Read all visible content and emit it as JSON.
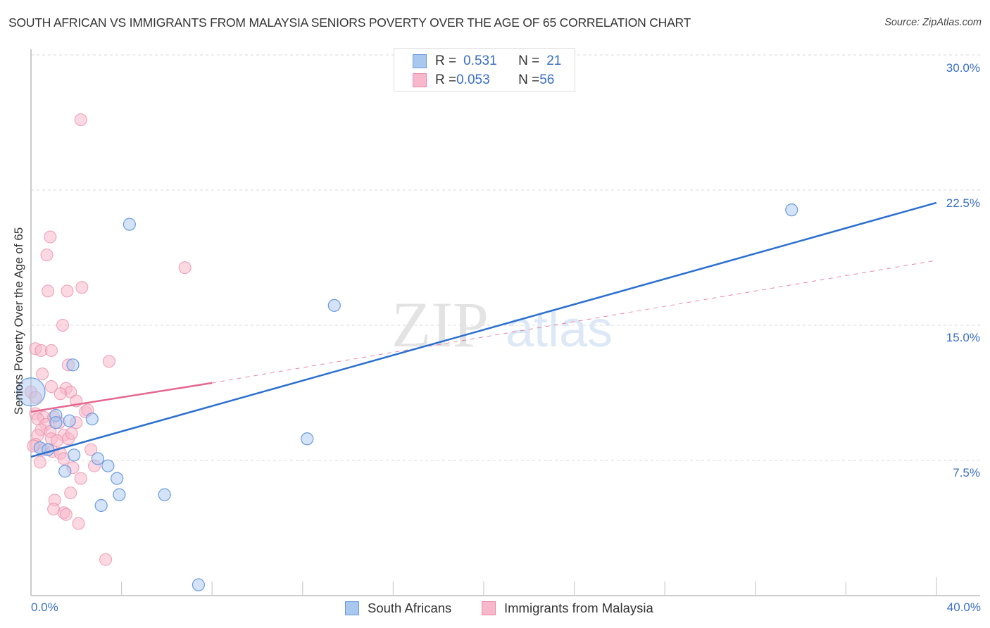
{
  "header": {
    "title": "SOUTH AFRICAN VS IMMIGRANTS FROM MALAYSIA SENIORS POVERTY OVER THE AGE OF 65 CORRELATION CHART",
    "source": "Source: ZipAtlas.com"
  },
  "watermark": {
    "zip": "ZIP",
    "atlas": "atlas"
  },
  "legend_top": {
    "rows": [
      {
        "r_label": "R = ",
        "r_value": "0.531",
        "n_label": "N = ",
        "n_value": "21",
        "color": "#a9c8f0"
      },
      {
        "r_label": "R = ",
        "r_value": "0.053",
        "n_label": "N = ",
        "n_value": "56",
        "color": "#f7b8cb"
      }
    ]
  },
  "axes": {
    "ylabel": "Seniors Poverty Over the Age of 65",
    "y_ticks": [
      "30.0%",
      "22.5%",
      "15.0%",
      "7.5%"
    ],
    "x_min_label": "0.0%",
    "x_max_label": "40.0%"
  },
  "legend_bottom": {
    "items": [
      {
        "label": "South Africans",
        "color": "#a9c8f0"
      },
      {
        "label": "Immigrants from Malaysia",
        "color": "#f7b8cb"
      }
    ]
  },
  "colors": {
    "blue_fill": "#a9c8f0",
    "blue_stroke": "#6b9be0",
    "blue_line": "#2a6fd0",
    "pink_fill": "#f7b8cb",
    "pink_stroke": "#e98aa8",
    "pink_line": "#e4678f",
    "tick_label": "#3a6fc4",
    "grid": "#d8d8d8"
  },
  "chart_data": {
    "type": "scatter",
    "title": "SOUTH AFRICAN VS IMMIGRANTS FROM MALAYSIA SENIORS POVERTY OVER THE AGE OF 65 CORRELATION CHART",
    "xlabel": "",
    "ylabel": "Seniors Poverty Over the Age of 65",
    "xlim": [
      0,
      40
    ],
    "ylim": [
      0,
      30
    ],
    "x_tick_labels": [
      "0.0%",
      "40.0%"
    ],
    "y_tick_labels": [
      "7.5%",
      "15.0%",
      "22.5%",
      "30.0%"
    ],
    "grid": true,
    "legend_position": "top-center and bottom",
    "series": [
      {
        "name": "South Africans",
        "R": 0.531,
        "N": 21,
        "trend": {
          "x": [
            0,
            40
          ],
          "y": [
            7.7,
            21.8
          ]
        },
        "points": [
          [
            0.0,
            11.3,
            3
          ],
          [
            0.4,
            8.2,
            1
          ],
          [
            0.75,
            8.1,
            1
          ],
          [
            1.1,
            10.0,
            1
          ],
          [
            1.85,
            12.8,
            1
          ],
          [
            1.7,
            9.7,
            1
          ],
          [
            2.7,
            9.8,
            1
          ],
          [
            1.9,
            7.8,
            1
          ],
          [
            1.5,
            6.9,
            1
          ],
          [
            2.95,
            7.6,
            1
          ],
          [
            3.4,
            7.2,
            1
          ],
          [
            3.8,
            6.5,
            1
          ],
          [
            3.9,
            5.6,
            1
          ],
          [
            3.1,
            5.0,
            1
          ],
          [
            5.9,
            5.6,
            1
          ],
          [
            4.35,
            20.6,
            1
          ],
          [
            13.4,
            16.1,
            1
          ],
          [
            12.2,
            8.7,
            1
          ],
          [
            7.4,
            0.6,
            1
          ],
          [
            33.6,
            21.4,
            1
          ],
          [
            1.1,
            9.6,
            1
          ]
        ]
      },
      {
        "name": "Immigrants from Malaysia",
        "R": 0.053,
        "N": 56,
        "trend": {
          "x": [
            0,
            8
          ],
          "y": [
            10.2,
            11.8
          ],
          "dashed_extension": {
            "x": [
              8,
              40
            ],
            "y": [
              11.8,
              18.6
            ]
          }
        },
        "points": [
          [
            2.2,
            26.4
          ],
          [
            0.7,
            18.9
          ],
          [
            0.85,
            19.9
          ],
          [
            6.8,
            18.2
          ],
          [
            0.75,
            16.9
          ],
          [
            1.6,
            16.9
          ],
          [
            2.25,
            17.1
          ],
          [
            1.4,
            15.0
          ],
          [
            0.2,
            13.7
          ],
          [
            0.45,
            13.6
          ],
          [
            0.9,
            13.6
          ],
          [
            1.65,
            12.8
          ],
          [
            3.45,
            13.0
          ],
          [
            0.5,
            12.3
          ],
          [
            0.0,
            11.3
          ],
          [
            0.2,
            11.0
          ],
          [
            1.55,
            11.5
          ],
          [
            1.75,
            11.3
          ],
          [
            0.9,
            11.6
          ],
          [
            1.3,
            11.2
          ],
          [
            2.0,
            10.8
          ],
          [
            2.4,
            10.2
          ],
          [
            2.5,
            10.3
          ],
          [
            0.2,
            10.1
          ],
          [
            0.55,
            9.9
          ],
          [
            0.3,
            9.8
          ],
          [
            1.0,
            9.9
          ],
          [
            0.65,
            9.5
          ],
          [
            0.45,
            9.2
          ],
          [
            0.85,
            9.1
          ],
          [
            1.25,
            9.6
          ],
          [
            1.45,
            8.9
          ],
          [
            0.3,
            8.9
          ],
          [
            0.9,
            8.7
          ],
          [
            1.15,
            8.6
          ],
          [
            1.65,
            8.7
          ],
          [
            2.0,
            9.6
          ],
          [
            0.2,
            8.4
          ],
          [
            0.55,
            8.1
          ],
          [
            0.95,
            8.0
          ],
          [
            2.65,
            8.1
          ],
          [
            1.3,
            7.9
          ],
          [
            1.45,
            7.6
          ],
          [
            0.4,
            7.4
          ],
          [
            1.85,
            7.1
          ],
          [
            2.8,
            7.2
          ],
          [
            2.2,
            6.5
          ],
          [
            1.75,
            5.7
          ],
          [
            1.05,
            5.3
          ],
          [
            1.0,
            4.8
          ],
          [
            1.45,
            4.6
          ],
          [
            1.55,
            4.5
          ],
          [
            2.1,
            4.0
          ],
          [
            3.3,
            2.0
          ],
          [
            0.1,
            8.3
          ],
          [
            1.8,
            9.0
          ]
        ]
      }
    ]
  }
}
